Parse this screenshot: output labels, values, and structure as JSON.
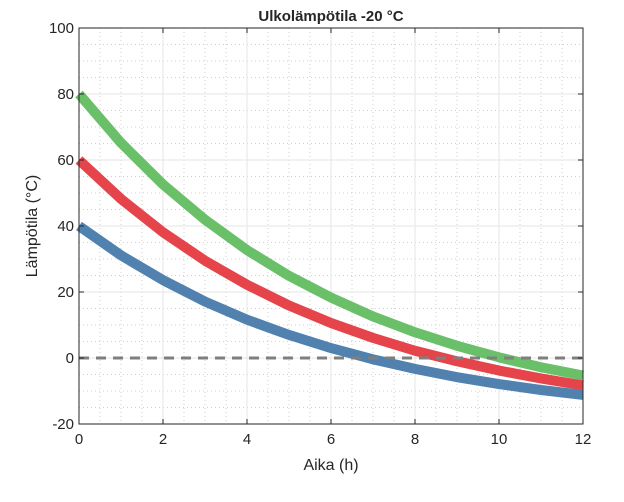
{
  "chart_data": {
    "type": "line",
    "title": "Ulkolämpötila -20 °C",
    "xlabel": "Aika (h)",
    "ylabel": "Lämpötila (°C)",
    "xlim": [
      0,
      12
    ],
    "ylim": [
      -20,
      100
    ],
    "xticks": [
      "0",
      "2",
      "4",
      "6",
      "8",
      "10",
      "12"
    ],
    "yticks": [
      "-20",
      "0",
      "20",
      "40",
      "60",
      "80",
      "100"
    ],
    "grid": true,
    "minor_grid": true,
    "x": [
      0,
      1,
      2,
      3,
      4,
      5,
      6,
      7,
      8,
      9,
      10,
      11,
      12
    ],
    "series": [
      {
        "color": "#6ABF69",
        "values": [
          80,
          65.2,
          52.6,
          41.9,
          32.7,
          24.9,
          18.3,
          12.6,
          7.8,
          3.7,
          0.2,
          -2.8,
          -5.3
        ]
      },
      {
        "color": "#E5454A",
        "values": [
          60,
          48.2,
          38.1,
          29.5,
          22.2,
          15.9,
          10.6,
          6.1,
          2.2,
          -1.0,
          -3.8,
          -6.2,
          -8.3
        ]
      },
      {
        "color": "#5182AF",
        "values": [
          40,
          31.1,
          23.6,
          17.1,
          11.6,
          7.0,
          3.0,
          -0.4,
          -3.3,
          -5.8,
          -7.9,
          -9.7,
          -11.2
        ]
      }
    ],
    "reference_line": {
      "y": 0,
      "style": "dashed",
      "color": "#7F7F7F"
    }
  }
}
